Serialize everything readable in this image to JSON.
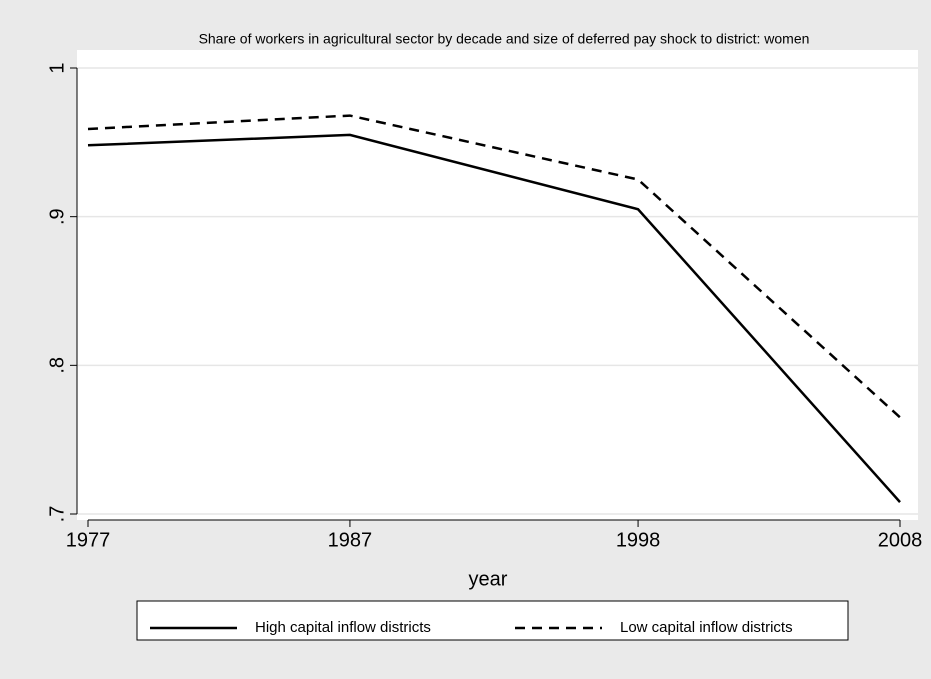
{
  "chart_data": {
    "type": "line",
    "title": "Share of workers in agricultural sector by decade and size of deferred pay shock to district: women",
    "x_label": "year",
    "x": [
      1977,
      1987,
      1998,
      2008
    ],
    "series": [
      {
        "name": "High capital inflow districts",
        "color": "#000000",
        "dash": "solid",
        "values": [
          0.948,
          0.955,
          0.905,
          0.708
        ]
      },
      {
        "name": "Low capital inflow districts",
        "color": "#000000",
        "dash": "dashed",
        "values": [
          0.959,
          0.968,
          0.925,
          0.765
        ]
      }
    ],
    "xlim": [
      1977,
      2008
    ],
    "xticks": [
      1977,
      1987,
      1998,
      2008
    ],
    "ylim": [
      0.7,
      1
    ],
    "yticks": [
      {
        "value": 0.7,
        "label": ".7"
      },
      {
        "value": 0.8,
        "label": ".8"
      },
      {
        "value": 0.9,
        "label": ".9"
      },
      1
    ],
    "grid": true,
    "legend": "bottom"
  }
}
